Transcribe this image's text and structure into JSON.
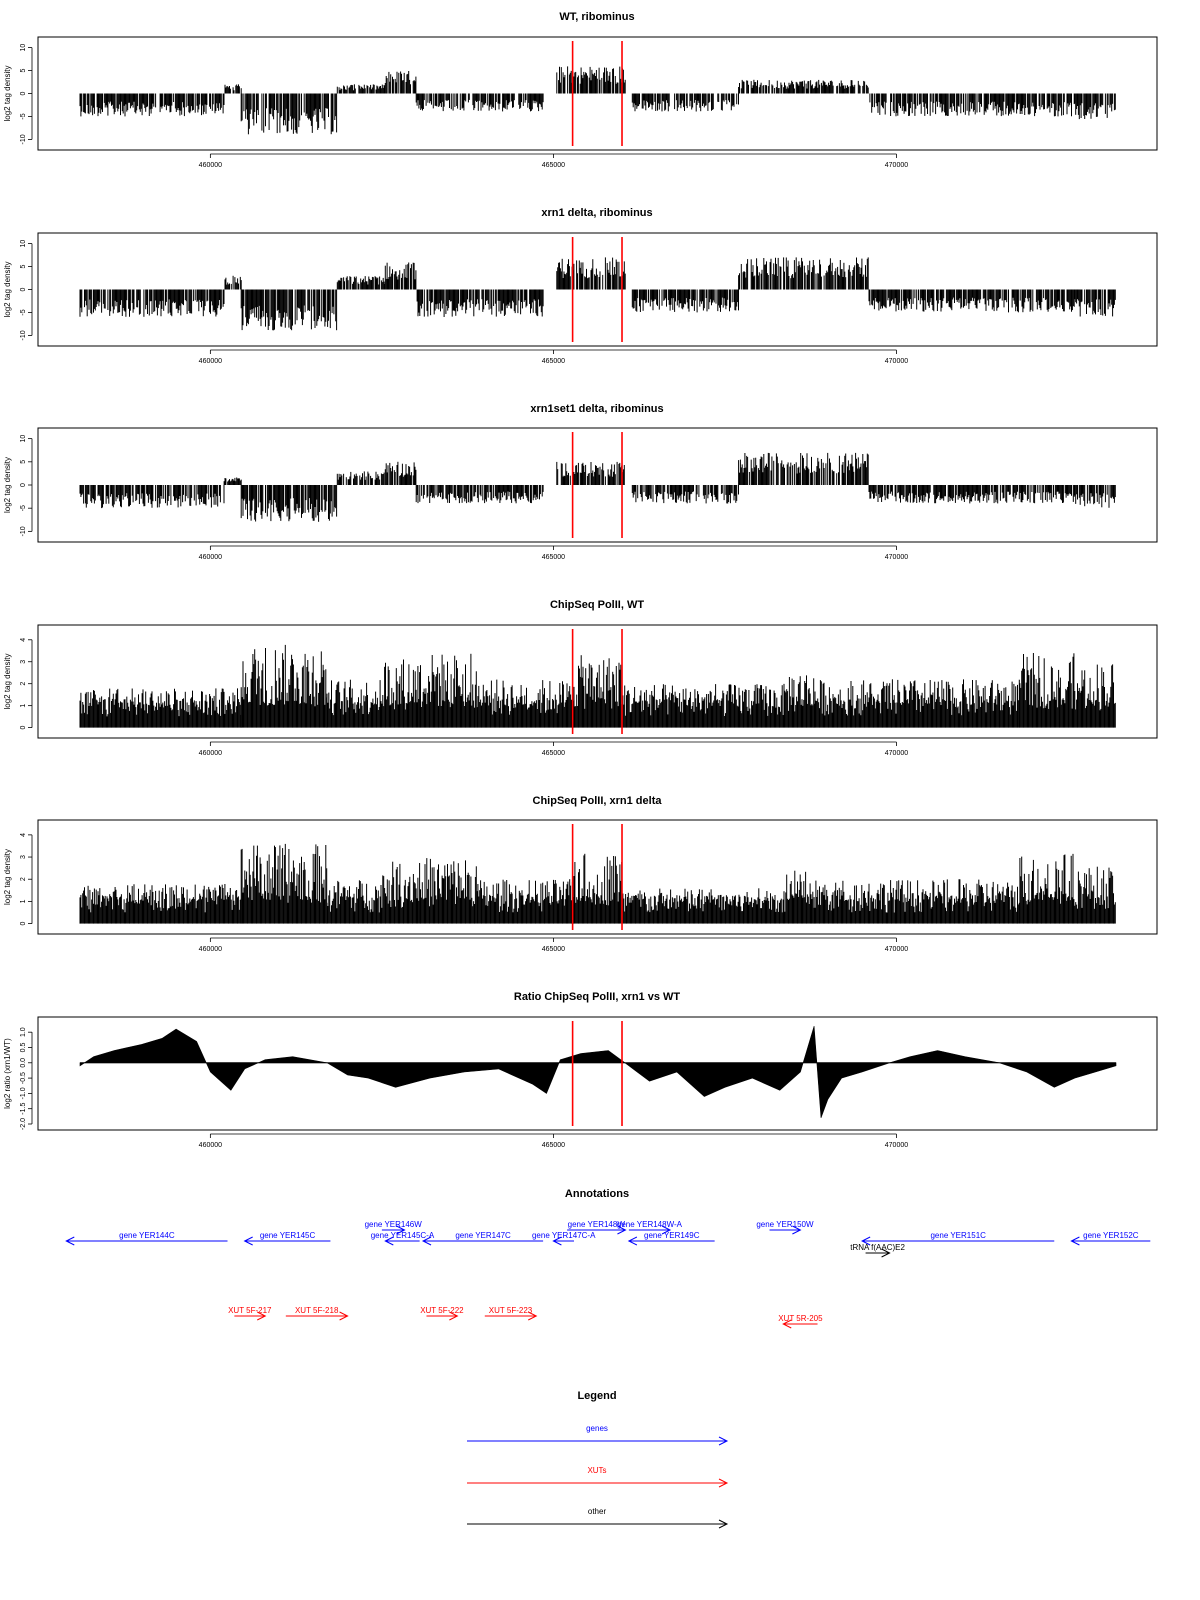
{
  "chart_data": [
    {
      "type": "bar",
      "title": "WT, ribominus",
      "ylabel": "log2 tag density",
      "xlabel": "",
      "xlim": [
        456800,
        473800
      ],
      "ylim": [
        -11,
        11
      ],
      "xticks": [
        460000,
        465000,
        470000
      ],
      "yticks": [
        -10,
        -5,
        0,
        5,
        10
      ],
      "grid": false,
      "red_markers": [
        465280,
        466000
      ],
      "segments": [
        {
          "start": 458100,
          "end": 460200,
          "sign": -1,
          "amp": 5
        },
        {
          "start": 460200,
          "end": 460450,
          "sign": 1,
          "amp": 2
        },
        {
          "start": 460450,
          "end": 461850,
          "sign": -1,
          "amp": 9
        },
        {
          "start": 461850,
          "end": 462550,
          "sign": 1,
          "amp": 2
        },
        {
          "start": 462550,
          "end": 463000,
          "sign": 1,
          "amp": 5
        },
        {
          "start": 463000,
          "end": 464850,
          "sign": -1,
          "amp": 4
        },
        {
          "start": 465050,
          "end": 466050,
          "sign": 1,
          "amp": 6
        },
        {
          "start": 466150,
          "end": 467700,
          "sign": -1,
          "amp": 4
        },
        {
          "start": 467700,
          "end": 469600,
          "sign": 1,
          "amp": 3
        },
        {
          "start": 469600,
          "end": 472600,
          "sign": -1,
          "amp": 5
        },
        {
          "start": 472600,
          "end": 473200,
          "sign": -1,
          "amp": 6
        }
      ]
    },
    {
      "type": "bar",
      "title": "xrn1 delta, ribominus",
      "ylabel": "log2 tag density",
      "xlabel": "",
      "xlim": [
        456800,
        473800
      ],
      "ylim": [
        -11,
        11
      ],
      "xticks": [
        460000,
        465000,
        470000
      ],
      "yticks": [
        -10,
        -5,
        0,
        5,
        10
      ],
      "grid": false,
      "red_markers": [
        465280,
        466000
      ],
      "segments": [
        {
          "start": 458100,
          "end": 460200,
          "sign": -1,
          "amp": 6
        },
        {
          "start": 460200,
          "end": 460450,
          "sign": 1,
          "amp": 3
        },
        {
          "start": 460450,
          "end": 461850,
          "sign": -1,
          "amp": 9
        },
        {
          "start": 461850,
          "end": 462550,
          "sign": 1,
          "amp": 3
        },
        {
          "start": 462550,
          "end": 463000,
          "sign": 1,
          "amp": 6
        },
        {
          "start": 463000,
          "end": 464850,
          "sign": -1,
          "amp": 6
        },
        {
          "start": 465050,
          "end": 466050,
          "sign": 1,
          "amp": 7
        },
        {
          "start": 466150,
          "end": 467700,
          "sign": -1,
          "amp": 5
        },
        {
          "start": 467700,
          "end": 469600,
          "sign": 1,
          "amp": 7
        },
        {
          "start": 469600,
          "end": 472600,
          "sign": -1,
          "amp": 5
        },
        {
          "start": 472600,
          "end": 473200,
          "sign": -1,
          "amp": 6
        }
      ]
    },
    {
      "type": "bar",
      "title": "xrn1set1 delta, ribominus",
      "ylabel": "log2 tag density",
      "xlabel": "",
      "xlim": [
        456800,
        473800
      ],
      "ylim": [
        -11,
        11
      ],
      "xticks": [
        460000,
        465000,
        470000
      ],
      "yticks": [
        -10,
        -5,
        0,
        5,
        10
      ],
      "grid": false,
      "red_markers": [
        465280,
        466000
      ],
      "segments": [
        {
          "start": 458100,
          "end": 460200,
          "sign": -1,
          "amp": 5
        },
        {
          "start": 460200,
          "end": 460450,
          "sign": 1,
          "amp": 2
        },
        {
          "start": 460450,
          "end": 461850,
          "sign": -1,
          "amp": 8
        },
        {
          "start": 461850,
          "end": 462550,
          "sign": 1,
          "amp": 3
        },
        {
          "start": 462550,
          "end": 463000,
          "sign": 1,
          "amp": 5
        },
        {
          "start": 463000,
          "end": 464850,
          "sign": -1,
          "amp": 4
        },
        {
          "start": 465050,
          "end": 466050,
          "sign": 1,
          "amp": 5
        },
        {
          "start": 466150,
          "end": 467700,
          "sign": -1,
          "amp": 4
        },
        {
          "start": 467700,
          "end": 469600,
          "sign": 1,
          "amp": 7
        },
        {
          "start": 469600,
          "end": 472600,
          "sign": -1,
          "amp": 4
        },
        {
          "start": 472600,
          "end": 473200,
          "sign": -1,
          "amp": 5
        }
      ]
    },
    {
      "type": "bar",
      "title": "ChipSeq PolII, WT",
      "ylabel": "log2 tag density",
      "xlabel": "",
      "xlim": [
        456800,
        473800
      ],
      "ylim": [
        -0.2,
        4.4
      ],
      "xticks": [
        460000,
        465000,
        470000
      ],
      "yticks": [
        0,
        1,
        2,
        3,
        4
      ],
      "grid": false,
      "red_markers": [
        465280,
        466000
      ],
      "segments": [
        {
          "start": 458100,
          "end": 460450,
          "level": 1.8
        },
        {
          "start": 460450,
          "end": 461700,
          "level": 3.8
        },
        {
          "start": 461700,
          "end": 462500,
          "level": 2.2
        },
        {
          "start": 462500,
          "end": 463050,
          "level": 3.2
        },
        {
          "start": 463050,
          "end": 463900,
          "level": 3.4
        },
        {
          "start": 463900,
          "end": 465300,
          "level": 2.2
        },
        {
          "start": 465300,
          "end": 466000,
          "level": 3.3
        },
        {
          "start": 466000,
          "end": 468400,
          "level": 2.0
        },
        {
          "start": 468400,
          "end": 468800,
          "level": 2.6
        },
        {
          "start": 468800,
          "end": 471800,
          "level": 2.2
        },
        {
          "start": 471800,
          "end": 472600,
          "level": 3.4
        },
        {
          "start": 472600,
          "end": 473200,
          "level": 3.0
        }
      ]
    },
    {
      "type": "bar",
      "title": "ChipSeq PolII, xrn1 delta",
      "ylabel": "log2 tag density",
      "xlabel": "",
      "xlim": [
        456800,
        473800
      ],
      "ylim": [
        -0.2,
        4.4
      ],
      "xticks": [
        460000,
        465000,
        470000
      ],
      "yticks": [
        0,
        1,
        2,
        3,
        4
      ],
      "grid": false,
      "red_markers": [
        465280,
        466000
      ],
      "segments": [
        {
          "start": 458100,
          "end": 460450,
          "level": 1.8
        },
        {
          "start": 460450,
          "end": 461700,
          "level": 3.6
        },
        {
          "start": 461700,
          "end": 462500,
          "level": 2.0
        },
        {
          "start": 462500,
          "end": 463050,
          "level": 2.8
        },
        {
          "start": 463050,
          "end": 463900,
          "level": 3.0
        },
        {
          "start": 463900,
          "end": 465300,
          "level": 2.0
        },
        {
          "start": 465300,
          "end": 466000,
          "level": 3.2
        },
        {
          "start": 466000,
          "end": 468400,
          "level": 1.6
        },
        {
          "start": 468400,
          "end": 468800,
          "level": 2.4
        },
        {
          "start": 468800,
          "end": 471800,
          "level": 2.0
        },
        {
          "start": 471800,
          "end": 472600,
          "level": 3.2
        },
        {
          "start": 472600,
          "end": 473200,
          "level": 2.6
        }
      ]
    },
    {
      "type": "area",
      "title": "Ratio ChipSeq PolII, xrn1 vs WT",
      "ylabel": "log2 ratio (xrn1/WT)",
      "xlabel": "",
      "xlim": [
        456800,
        473800
      ],
      "ylim": [
        -2.0,
        1.3
      ],
      "xticks": [
        460000,
        465000,
        470000
      ],
      "yticks": [
        -2.0,
        -1.5,
        -1.0,
        -0.5,
        0.0,
        0.5,
        1.0
      ],
      "grid": false,
      "red_markers": [
        465280,
        466000
      ],
      "x": [
        458100,
        458300,
        458600,
        459000,
        459300,
        459500,
        459800,
        460000,
        460300,
        460500,
        460800,
        461200,
        461700,
        462000,
        462300,
        462700,
        463200,
        463700,
        464200,
        464700,
        464900,
        465100,
        465400,
        465800,
        466100,
        466400,
        466800,
        467200,
        467500,
        467900,
        468300,
        468600,
        468800,
        468900,
        469000,
        469200,
        469500,
        469900,
        470200,
        470600,
        471000,
        471500,
        471900,
        472300,
        472600,
        472900,
        473200
      ],
      "values": [
        -0.1,
        0.2,
        0.4,
        0.6,
        0.8,
        1.1,
        0.7,
        -0.3,
        -0.9,
        -0.2,
        0.1,
        0.2,
        0.0,
        -0.4,
        -0.5,
        -0.8,
        -0.5,
        -0.3,
        -0.2,
        -0.7,
        -1.0,
        0.1,
        0.3,
        0.4,
        -0.1,
        -0.6,
        -0.3,
        -1.1,
        -0.8,
        -0.5,
        -0.9,
        -0.3,
        1.2,
        -1.8,
        -1.2,
        -0.5,
        -0.3,
        0.0,
        0.2,
        0.4,
        0.2,
        0.0,
        -0.3,
        -0.8,
        -0.5,
        -0.3,
        -0.1
      ]
    }
  ],
  "annotations": {
    "title": "Annotations",
    "genes": [
      {
        "label": "gene YER144C",
        "start": 460250,
        "end": 457900,
        "row": 1
      },
      {
        "label": "gene YER145C",
        "start": 461750,
        "end": 460500,
        "row": 1
      },
      {
        "label": "gene YER146W",
        "start": 462500,
        "end": 462830,
        "row": 0
      },
      {
        "label": "gene YER145C-A",
        "start": 463050,
        "end": 462550,
        "row": 1
      },
      {
        "label": "gene YER147C",
        "start": 464850,
        "end": 463100,
        "row": 1
      },
      {
        "label": "gene YER148W",
        "start": 465200,
        "end": 466050,
        "row": 0
      },
      {
        "label": "gene YER148W-A",
        "start": 466100,
        "end": 466700,
        "row": 0
      },
      {
        "label": "gene YER147C-A",
        "start": 465300,
        "end": 465000,
        "row": 1
      },
      {
        "label": "gene YER149C",
        "start": 467350,
        "end": 466100,
        "row": 1
      },
      {
        "label": "gene YER150W",
        "start": 468150,
        "end": 468600,
        "row": 0
      },
      {
        "label": "gene YER151C",
        "start": 472300,
        "end": 469500,
        "row": 1
      },
      {
        "label": "gene YER152C",
        "start": 473700,
        "end": 472550,
        "row": 1
      }
    ],
    "xuts": [
      {
        "label": "XUT 5F-217",
        "start": 460350,
        "end": 460800
      },
      {
        "label": "XUT 5F-218",
        "start": 461100,
        "end": 462000
      },
      {
        "label": "XUT 5F-222",
        "start": 463150,
        "end": 463600
      },
      {
        "label": "XUT 5F-223",
        "start": 464000,
        "end": 464750
      },
      {
        "label": "XUT 5R-205",
        "start": 468850,
        "end": 468350
      }
    ],
    "other": [
      {
        "label": "tRNA f(AAC)E2",
        "start": 469550,
        "end": 469900
      }
    ]
  },
  "legend": {
    "title": "Legend",
    "items": [
      {
        "label": "genes",
        "color": "#0000ff"
      },
      {
        "label": "XUTs",
        "color": "#ff0000"
      },
      {
        "label": "other",
        "color": "#000000"
      }
    ]
  },
  "colors": {
    "bars": "#000000",
    "marker": "#ff0000",
    "gene": "#0000ff",
    "xut": "#ff0000",
    "other": "#000000"
  }
}
